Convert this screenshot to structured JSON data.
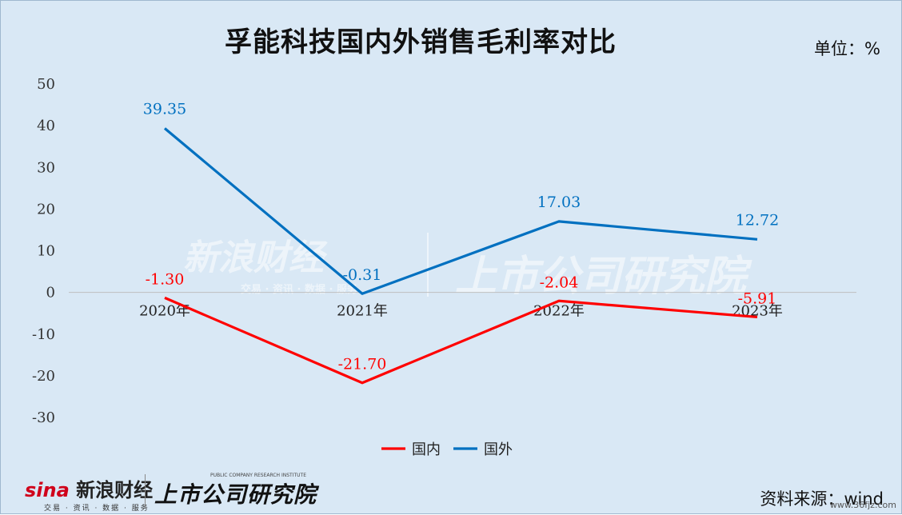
{
  "header": {
    "title": "孚能科技国内外销售毛利率对比",
    "unit": "单位：%"
  },
  "footer": {
    "source": "资料来源：wind",
    "sina_logo": "新浪财经",
    "sina_tagline": "交易 · 资讯 · 数据 · 服务",
    "inst_logo": "上市公司研究院",
    "inst_tagline": "PUBLIC COMPANY RESEARCH INSTITUTE",
    "corner_mark": "www.36fjz.com"
  },
  "watermark": {
    "sina": "新浪财经",
    "sina_tagline": "交易 · 资讯 · 数据 · 服务",
    "inst": "上市公司研究院"
  },
  "colors": {
    "background": "#d9e8f5",
    "domestic": "#ff0000",
    "foreign": "#0070c0",
    "zero_line": "#bfbfbf"
  },
  "chart_data": {
    "type": "line",
    "categories": [
      "2020年",
      "2021年",
      "2022年",
      "2023年"
    ],
    "series": [
      {
        "name": "国内",
        "values": [
          -1.3,
          -21.7,
          -2.04,
          -5.91
        ],
        "labels": [
          "-1.30",
          "-21.70",
          "-2.04",
          "-5.91"
        ],
        "color": "#ff0000"
      },
      {
        "name": "国外",
        "values": [
          39.35,
          -0.31,
          17.03,
          12.72
        ],
        "labels": [
          "39.35",
          "-0.31",
          "17.03",
          "12.72"
        ],
        "color": "#0070c0"
      }
    ],
    "yticks": [
      "50",
      "40",
      "30",
      "20",
      "10",
      "0",
      "-10",
      "-20",
      "-30"
    ],
    "ylim": [
      -30,
      50
    ],
    "grid": false,
    "legend": "bottom"
  }
}
